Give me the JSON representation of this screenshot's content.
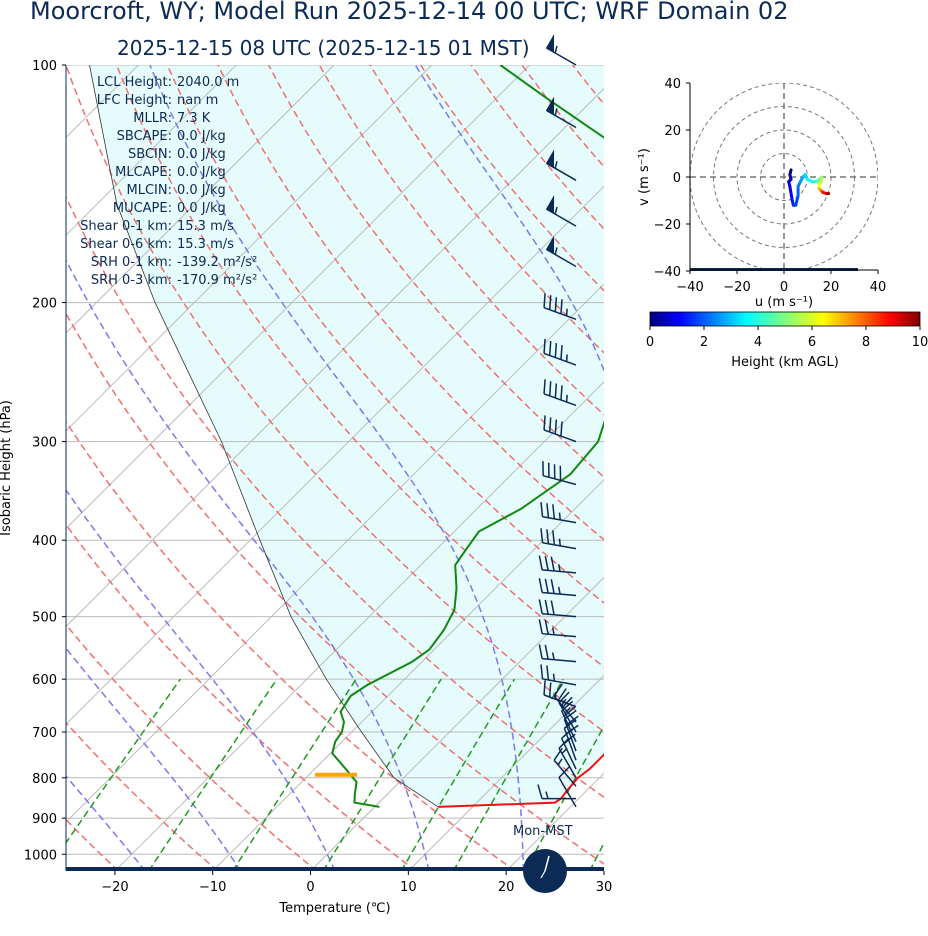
{
  "header": {
    "title": "Moorcroft, WY; Model Run 2025-12-14 00 UTC; WRF Domain 02",
    "subtitle": "2025-12-15 08 UTC  (2025-12-15 01 MST)"
  },
  "stats": [
    {
      "label": "LCL Height:",
      "value": "2040.0 m"
    },
    {
      "label": "LFC Height:",
      "value": "nan m"
    },
    {
      "label": "MLLR:",
      "value": "7.3 K"
    },
    {
      "label": "SBCAPE:",
      "value": "0.0 J/kg"
    },
    {
      "label": "SBCIN:",
      "value": "0.0 J/kg"
    },
    {
      "label": "MLCAPE:",
      "value": "0.0 J/kg"
    },
    {
      "label": "MLCIN:",
      "value": "0.0 J/kg"
    },
    {
      "label": "MUCAPE:",
      "value": "0.0 J/kg"
    },
    {
      "label": "Shear 0-1 km:",
      "value": "15.3 m/s"
    },
    {
      "label": "Shear 0-6 km:",
      "value": "15.3 m/s"
    },
    {
      "label": "SRH 0-1 km:",
      "value": "-139.2 m²/s²"
    },
    {
      "label": "SRH 0-3 km:",
      "value": "-170.9 m²/s²"
    }
  ],
  "clock_label": "Mon-MST",
  "colors": {
    "temperature": "#ee1111",
    "dewpoint": "#118811",
    "parcel_shade": "#e6fcfc",
    "dry_adiabat": "#f07070",
    "moist_adiabat": "#7a7aee",
    "mixing_ratio": "#229922",
    "barb": "#0b2a55",
    "lcl_marker": "#ffa500"
  },
  "chart_data": [
    {
      "type": "line",
      "name": "skew-t",
      "xlabel": "Temperature (℃)",
      "ylabel": "Isobaric Height (hPa)",
      "xlim": [
        -25,
        30
      ],
      "ylim": [
        1050,
        100
      ],
      "y_log": true,
      "skew_deg": 45,
      "xticks": [
        -20,
        -10,
        0,
        10,
        20,
        30
      ],
      "yticks": [
        100,
        200,
        300,
        400,
        500,
        600,
        700,
        800,
        900,
        1000
      ],
      "grid": true,
      "temperature": [
        [
          871,
          6.5
        ],
        [
          860,
          18.0
        ],
        [
          850,
          18.2
        ],
        [
          830,
          18.0
        ],
        [
          800,
          17.8
        ],
        [
          780,
          18.1
        ],
        [
          750,
          18.1
        ],
        [
          700,
          18.0
        ],
        [
          670,
          17.8
        ],
        [
          640,
          17.0
        ],
        [
          610,
          15.0
        ],
        [
          580,
          14.0
        ],
        [
          560,
          13.4
        ],
        [
          530,
          11.0
        ],
        [
          500,
          8.3
        ],
        [
          470,
          5.5
        ],
        [
          440,
          3.0
        ],
        [
          400,
          0.5
        ],
        [
          350,
          -3.5
        ],
        [
          300,
          -8.0
        ],
        [
          270,
          -12.0
        ],
        [
          240,
          -16.0
        ],
        [
          230,
          -18.0
        ],
        [
          210,
          -17.3
        ],
        [
          200,
          -18.0
        ],
        [
          180,
          -20.0
        ],
        [
          165,
          -22.0
        ],
        [
          140,
          -25.0
        ],
        [
          120,
          -28.5
        ],
        [
          100,
          -33.0
        ]
      ],
      "dewpoint": [
        [
          871,
          0.5
        ],
        [
          860,
          -2.5
        ],
        [
          840,
          -3.3
        ],
        [
          810,
          -4.4
        ],
        [
          780,
          -6.8
        ],
        [
          745,
          -9.8
        ],
        [
          720,
          -10.7
        ],
        [
          700,
          -11.0
        ],
        [
          680,
          -11.8
        ],
        [
          660,
          -13.2
        ],
        [
          630,
          -13.8
        ],
        [
          610,
          -13.2
        ],
        [
          570,
          -11.0
        ],
        [
          550,
          -10.5
        ],
        [
          520,
          -11.0
        ],
        [
          490,
          -12.0
        ],
        [
          460,
          -14.0
        ],
        [
          430,
          -16.5
        ],
        [
          410,
          -17.0
        ],
        [
          390,
          -17.5
        ],
        [
          365,
          -15.5
        ],
        [
          330,
          -14.0
        ],
        [
          300,
          -14.5
        ],
        [
          270,
          -17.0
        ],
        [
          240,
          -19.5
        ],
        [
          215,
          -21.0
        ],
        [
          200,
          -23.5
        ],
        [
          185,
          -26.0
        ],
        [
          170,
          -28.5
        ],
        [
          155,
          -32.0
        ],
        [
          140,
          -37.0
        ],
        [
          125,
          -44.0
        ],
        [
          110,
          -55.0
        ],
        [
          100,
          -63.0
        ]
      ],
      "parcel_path": [
        [
          871,
          6.5
        ],
        [
          800,
          -1.0
        ],
        [
          700,
          -9.0
        ],
        [
          600,
          -18.0
        ],
        [
          500,
          -28.0
        ],
        [
          400,
          -39.0
        ],
        [
          300,
          -53.0
        ],
        [
          200,
          -74.0
        ],
        [
          150,
          -88.0
        ],
        [
          100,
          -105.0
        ]
      ],
      "lcl_pressure_hpa": 793,
      "dry_adiabats_theta_k": [
        250,
        260,
        270,
        280,
        290,
        300,
        310,
        320,
        330,
        340,
        350,
        360,
        370,
        380,
        390,
        400,
        410,
        420
      ],
      "moist_adiabats_tw_c": [
        -30,
        -20,
        -10,
        0,
        10,
        20,
        30
      ],
      "mixing_ratio_lines_gkg": [
        0.4,
        1,
        2,
        4,
        7,
        10,
        16,
        24,
        32
      ],
      "wind_barbs": [
        {
          "p": 100,
          "dir": 300,
          "kt": 55
        },
        {
          "p": 120,
          "dir": 300,
          "kt": 55
        },
        {
          "p": 140,
          "dir": 300,
          "kt": 55
        },
        {
          "p": 160,
          "dir": 300,
          "kt": 55
        },
        {
          "p": 180,
          "dir": 300,
          "kt": 55
        },
        {
          "p": 210,
          "dir": 290,
          "kt": 45
        },
        {
          "p": 240,
          "dir": 290,
          "kt": 45
        },
        {
          "p": 270,
          "dir": 290,
          "kt": 45
        },
        {
          "p": 300,
          "dir": 290,
          "kt": 40
        },
        {
          "p": 340,
          "dir": 285,
          "kt": 40
        },
        {
          "p": 380,
          "dir": 280,
          "kt": 35
        },
        {
          "p": 410,
          "dir": 280,
          "kt": 35
        },
        {
          "p": 440,
          "dir": 275,
          "kt": 35
        },
        {
          "p": 470,
          "dir": 275,
          "kt": 35
        },
        {
          "p": 500,
          "dir": 275,
          "kt": 30
        },
        {
          "p": 530,
          "dir": 275,
          "kt": 25
        },
        {
          "p": 570,
          "dir": 275,
          "kt": 25
        },
        {
          "p": 610,
          "dir": 280,
          "kt": 25
        },
        {
          "p": 650,
          "dir": 290,
          "kt": 25
        },
        {
          "p": 680,
          "dir": 320,
          "kt": 25
        },
        {
          "p": 700,
          "dir": 330,
          "kt": 25
        },
        {
          "p": 720,
          "dir": 335,
          "kt": 20
        },
        {
          "p": 740,
          "dir": 340,
          "kt": 20
        },
        {
          "p": 760,
          "dir": 340,
          "kt": 20
        },
        {
          "p": 780,
          "dir": 335,
          "kt": 20
        },
        {
          "p": 800,
          "dir": 330,
          "kt": 15
        },
        {
          "p": 820,
          "dir": 320,
          "kt": 15
        },
        {
          "p": 850,
          "dir": 270,
          "kt": 15
        },
        {
          "p": 871,
          "dir": 330,
          "kt": 10
        }
      ]
    },
    {
      "type": "line",
      "name": "hodograph",
      "xlabel": "u (m s⁻¹)",
      "ylabel": "v (m s⁻¹)",
      "xlim": [
        -40,
        40
      ],
      "ylim": [
        -40,
        40
      ],
      "xticks": [
        -40,
        -20,
        0,
        20,
        40
      ],
      "yticks": [
        -40,
        -20,
        0,
        20,
        40
      ],
      "rings_ms": [
        10,
        20,
        30,
        40
      ],
      "colorbar": {
        "label": "Height (km AGL)",
        "min": 0,
        "max": 10,
        "ticks": [
          0,
          2,
          4,
          6,
          8,
          10
        ]
      },
      "trace": [
        {
          "u": 3,
          "v": 3,
          "h": 0
        },
        {
          "u": 2.5,
          "v": 1,
          "h": 0.2
        },
        {
          "u": 3,
          "v": -1,
          "h": 0.4
        },
        {
          "u": 2,
          "v": -2,
          "h": 0.6
        },
        {
          "u": 2.5,
          "v": -4,
          "h": 0.8
        },
        {
          "u": 3,
          "v": -7,
          "h": 1.0
        },
        {
          "u": 3.5,
          "v": -10,
          "h": 1.2
        },
        {
          "u": 4,
          "v": -12,
          "h": 1.4
        },
        {
          "u": 5,
          "v": -12,
          "h": 1.6
        },
        {
          "u": 6,
          "v": -8,
          "h": 1.9
        },
        {
          "u": 6,
          "v": -4,
          "h": 2.2
        },
        {
          "u": 7,
          "v": -2,
          "h": 2.5
        },
        {
          "u": 8,
          "v": 0,
          "h": 2.8
        },
        {
          "u": 9,
          "v": 1,
          "h": 3.1
        },
        {
          "u": 10,
          "v": -1,
          "h": 3.4
        },
        {
          "u": 12,
          "v": -2,
          "h": 3.8
        },
        {
          "u": 14,
          "v": -2,
          "h": 4.2
        },
        {
          "u": 15,
          "v": -1,
          "h": 4.6
        },
        {
          "u": 16,
          "v": 0,
          "h": 5.0
        },
        {
          "u": 16,
          "v": -2,
          "h": 5.5
        },
        {
          "u": 15,
          "v": -3,
          "h": 6.0
        },
        {
          "u": 15,
          "v": -5,
          "h": 6.8
        },
        {
          "u": 16,
          "v": -6,
          "h": 7.6
        },
        {
          "u": 16.5,
          "v": -6.5,
          "h": 8.4
        },
        {
          "u": 18,
          "v": -7,
          "h": 9.2
        },
        {
          "u": 19,
          "v": -7,
          "h": 10.0
        }
      ]
    }
  ]
}
